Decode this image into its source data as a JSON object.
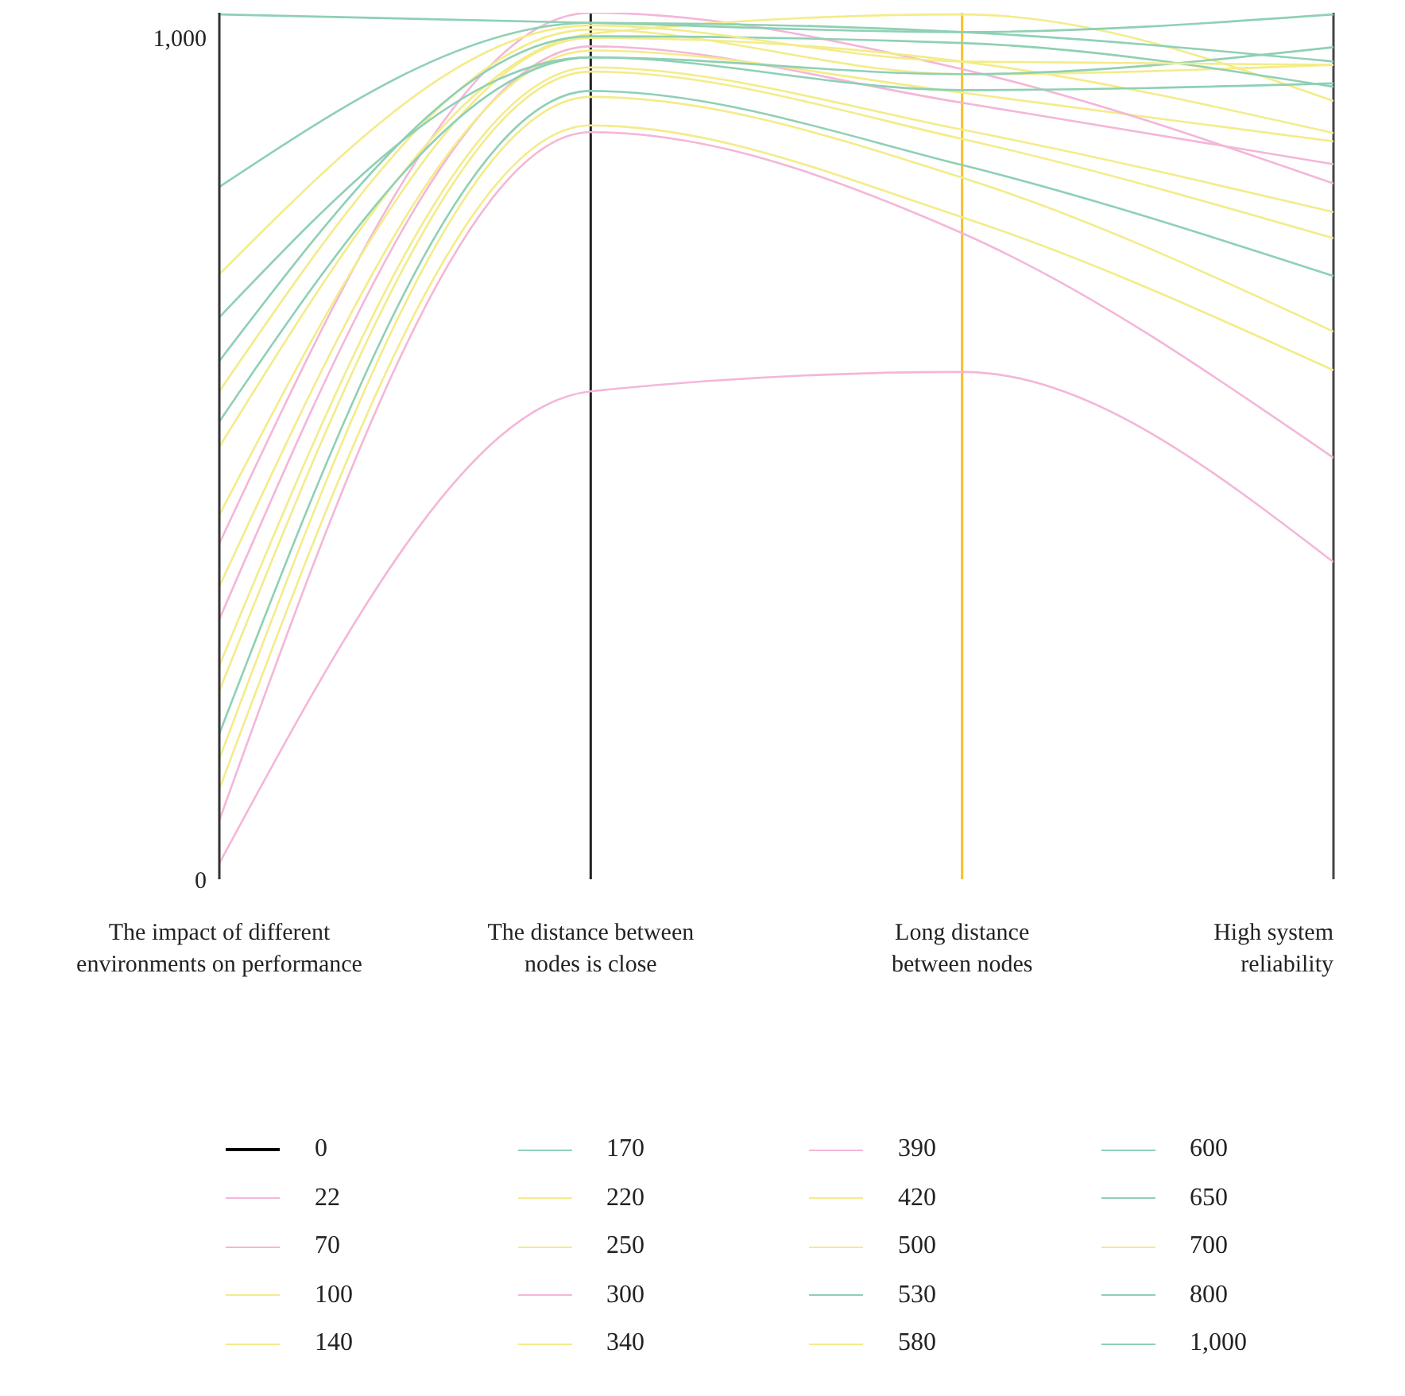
{
  "chart_data": {
    "type": "line",
    "categories": [
      "The impact of different environments on performance",
      "The distance between nodes is close",
      "Long distance between nodes",
      "High system reliability"
    ],
    "ylim": [
      0,
      1030
    ],
    "yticks": [
      0,
      {
        "value": 1000,
        "label": "1,000"
      }
    ],
    "grid": false,
    "legend": "bottom",
    "marker": "none",
    "line_style": "solid",
    "ref_lines": [
      {
        "axis": "x",
        "value": "The distance between nodes is close",
        "color": "#222222"
      },
      {
        "axis": "x",
        "value": "Long distance between nodes",
        "color": "#f2c12e"
      },
      {
        "axis": "x",
        "value": "High system reliability",
        "color": "#444444"
      }
    ],
    "series": [
      {
        "name": "0",
        "color": "#000000",
        "values": [
          null,
          null,
          null,
          null
        ]
      },
      {
        "name": "22",
        "color": "#f4b6d8",
        "values": [
          19,
          580,
          603,
          377
        ]
      },
      {
        "name": "70",
        "color": "#f4b6d8",
        "values": [
          70,
          888,
          768,
          501
        ]
      },
      {
        "name": "100",
        "color": "#f3ec8a",
        "values": [
          107,
          896,
          787,
          605
        ]
      },
      {
        "name": "140",
        "color": "#f3ec8a",
        "values": [
          143,
          930,
          834,
          651
        ]
      },
      {
        "name": "170",
        "color": "#8fd0b4",
        "values": [
          173,
          937,
          849,
          717
        ]
      },
      {
        "name": "220",
        "color": "#f3ec8a",
        "values": [
          224,
          960,
          880,
          762
        ]
      },
      {
        "name": "250",
        "color": "#f3ec8a",
        "values": [
          254,
          965,
          891,
          793
        ]
      },
      {
        "name": "300",
        "color": "#f4b6d8",
        "values": [
          309,
          990,
          923,
          850
        ]
      },
      {
        "name": "340",
        "color": "#f3ec8a",
        "values": [
          348,
          985,
          935,
          877
        ]
      },
      {
        "name": "390",
        "color": "#f4b6d8",
        "values": [
          399,
          1030,
          963,
          827
        ]
      },
      {
        "name": "420",
        "color": "#f3ec8a",
        "values": [
          433,
          1000,
          972,
          887
        ]
      },
      {
        "name": "500",
        "color": "#f3ec8a",
        "values": [
          514,
          1005,
          1028,
          925
        ]
      },
      {
        "name": "530",
        "color": "#8fd0b4",
        "values": [
          544,
          977,
          938,
          946
        ]
      },
      {
        "name": "580",
        "color": "#f3ec8a",
        "values": [
          580,
          1010,
          957,
          968
        ]
      },
      {
        "name": "600",
        "color": "#8fd0b4",
        "values": [
          616,
          1002,
          994,
          942
        ]
      },
      {
        "name": "650",
        "color": "#8fd0b4",
        "values": [
          668,
          977,
          957,
          989
        ]
      },
      {
        "name": "700",
        "color": "#f3ec8a",
        "values": [
          719,
          1015,
          972,
          968
        ]
      },
      {
        "name": "800",
        "color": "#8fd0b4",
        "values": [
          823,
          1018,
          1007,
          972
        ]
      },
      {
        "name": "1,000",
        "color": "#8fd0b4",
        "values": [
          1028,
          1018,
          1007,
          1028
        ]
      }
    ]
  }
}
